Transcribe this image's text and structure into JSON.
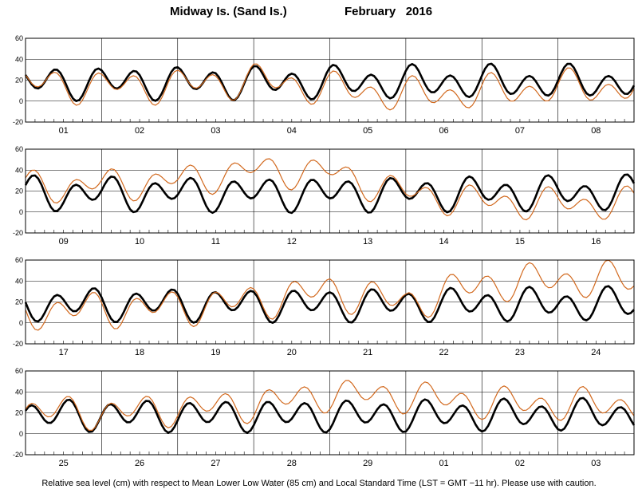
{
  "title": {
    "station": "Midway Is. (Sand Is.)",
    "month": "February   2016"
  },
  "caption": "Relative sea level (cm) with respect to Mean Lower Low Water (85 cm) and Local Standard Time (LST = GMT −11 hr). Please use with caution.",
  "colors": {
    "predicted": "#000000",
    "observed": "#d2691e",
    "frame": "#000000"
  },
  "chart_data": [
    {
      "type": "line",
      "panel": 1,
      "ylim": [
        -20,
        60
      ],
      "yticks": [
        -20,
        0,
        20,
        40,
        60
      ],
      "day_labels": [
        "01",
        "02",
        "03",
        "04",
        "05",
        "06",
        "07",
        "08"
      ],
      "series": [
        {
          "role": "predicted",
          "params": {
            "mean": 18,
            "a1": 12,
            "a2": 6,
            "phase1": 10,
            "phase2": 4
          }
        },
        {
          "role": "observed",
          "params": {
            "mean": 16,
            "a1": 11,
            "a2": 8,
            "phase1": 10,
            "phase2": 4,
            "offsets": [
              1,
              -2,
              -1,
              4,
              -4,
              -10,
              -8,
              -3
            ]
          }
        }
      ]
    },
    {
      "type": "line",
      "panel": 2,
      "ylim": [
        -20,
        60
      ],
      "yticks": [
        -20,
        0,
        20,
        40,
        60
      ],
      "day_labels": [
        "09",
        "10",
        "11",
        "12",
        "13",
        "14",
        "15",
        "16"
      ],
      "series": [
        {
          "role": "predicted",
          "params": {
            "mean": 18,
            "a1": 12,
            "a2": 7,
            "phase1": 3,
            "phase2": 0
          }
        },
        {
          "role": "observed",
          "params": {
            "mean": 18,
            "a1": 10,
            "a2": 8,
            "phase1": 3,
            "phase2": 0,
            "offsets": [
              6,
              8,
              12,
              22,
              20,
              0,
              -8,
              -10
            ]
          }
        }
      ]
    },
    {
      "type": "line",
      "panel": 3,
      "ylim": [
        -20,
        60
      ],
      "yticks": [
        -20,
        0,
        20,
        40,
        60
      ],
      "day_labels": [
        "17",
        "18",
        "19",
        "20",
        "21",
        "22",
        "23",
        "24"
      ],
      "series": [
        {
          "role": "predicted",
          "params": {
            "mean": 18,
            "a1": 12,
            "a2": 6,
            "phase1": 22,
            "phase2": 18
          }
        },
        {
          "role": "observed",
          "params": {
            "mean": 17,
            "a1": 12,
            "a2": 8,
            "phase1": 22,
            "phase2": 18,
            "offsets": [
              -6,
              -4,
              -2,
              4,
              14,
              2,
              20,
              24
            ]
          }
        }
      ]
    },
    {
      "type": "line",
      "panel": 4,
      "ylim": [
        -20,
        60
      ],
      "yticks": [
        -20,
        0,
        20,
        40,
        60
      ],
      "day_labels": [
        "25",
        "26",
        "27",
        "28",
        "29",
        "01",
        "02",
        "03"
      ],
      "series": [
        {
          "role": "predicted",
          "params": {
            "mean": 18,
            "a1": 12,
            "a2": 5,
            "phase1": 14,
            "phase2": 10
          }
        },
        {
          "role": "observed",
          "params": {
            "mean": 18,
            "a1": 11,
            "a2": 7,
            "phase1": 14,
            "phase2": 10,
            "offsets": [
              4,
              2,
              6,
              10,
              20,
              18,
              12,
              10
            ]
          }
        }
      ]
    }
  ]
}
